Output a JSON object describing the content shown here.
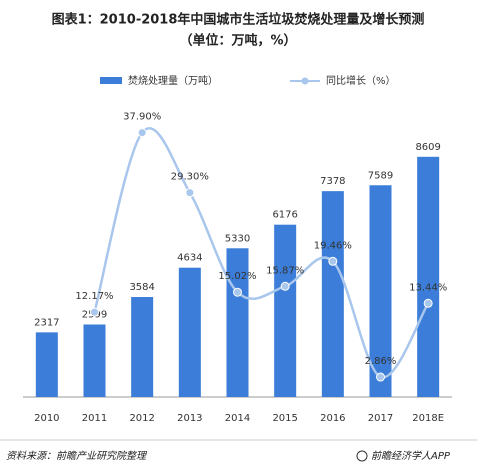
{
  "chart_data": {
    "type": "bar-line",
    "title": "图表1：2010-2018年中国城市生活垃圾焚烧处理量及增长预测",
    "subtitle": "（单位：万吨，%）",
    "categories": [
      "2010",
      "2011",
      "2012",
      "2013",
      "2014",
      "2015",
      "2016",
      "2017",
      "2018E"
    ],
    "series": [
      {
        "name": "焚烧处理量（万吨）",
        "color": "#3b7dd8",
        "values": [
          2317,
          2599,
          3584,
          4634,
          5330,
          6176,
          7378,
          7589,
          8609
        ]
      },
      {
        "name": "同比增长（%）",
        "color": "#a9c6ec",
        "axis": "y2",
        "values": [
          null,
          12.17,
          37.9,
          29.3,
          15.02,
          15.87,
          19.46,
          2.86,
          13.44
        ],
        "value_labels": [
          null,
          "12.17%",
          "37.90%",
          "29.30%",
          "15.02%",
          "15.87%",
          "19.46%",
          "2.86%",
          "13.44%"
        ]
      }
    ],
    "ylim": [
      0,
      10000
    ],
    "y2lim": [
      0,
      40
    ],
    "source": "资料来源：前瞻产业研究院整理",
    "footer": "前瞻经济学人APP"
  }
}
